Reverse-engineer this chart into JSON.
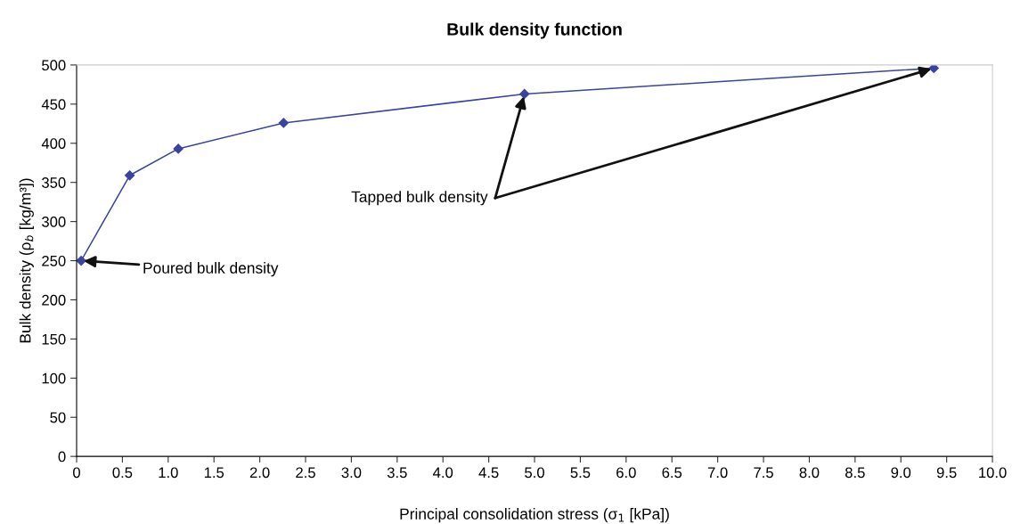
{
  "chart_data": {
    "type": "line",
    "title": "Bulk density function",
    "xlabel": "Principal consolidation stress (σ$_{1}$ [kPa])",
    "ylabel": "Bulk density (ρ$_{b}$ [kg/m³])",
    "x": [
      0.05,
      0.58,
      1.11,
      2.26,
      4.89,
      9.36
    ],
    "series": [
      {
        "color": "#3a44a0",
        "values": [
          250,
          359,
          393,
          426,
          463,
          496
        ]
      }
    ],
    "marker": "diamond",
    "line_style": "solid",
    "grid": false,
    "xlim": [
      0,
      10
    ],
    "ylim": [
      0,
      500
    ],
    "xticks": [
      0,
      0.5,
      {
        "value": 1,
        "label": "1.0"
      },
      1.5,
      {
        "value": 2,
        "label": "2.0"
      },
      2.5,
      {
        "value": 3,
        "label": "3.0"
      },
      3.5,
      {
        "value": 4,
        "label": "4.0"
      },
      4.5,
      {
        "value": 5,
        "label": "5.0"
      },
      5.5,
      {
        "value": 6,
        "label": "6.0"
      },
      6.5,
      {
        "value": 7,
        "label": "7.0"
      },
      7.5,
      {
        "value": 8,
        "label": "8.0"
      },
      8.5,
      {
        "value": 9,
        "label": "9.0"
      },
      9.5,
      {
        "value": 10,
        "label": "10.0"
      }
    ],
    "yticks": [
      0,
      50,
      100,
      150,
      200,
      250,
      300,
      350,
      400,
      450,
      500
    ],
    "annotations": [
      {
        "text": "Poured bulk density",
        "x": 0.05,
        "y": 250
      },
      {
        "text": "Tapped bulk density",
        "x": 4.89,
        "y": 463
      }
    ]
  }
}
